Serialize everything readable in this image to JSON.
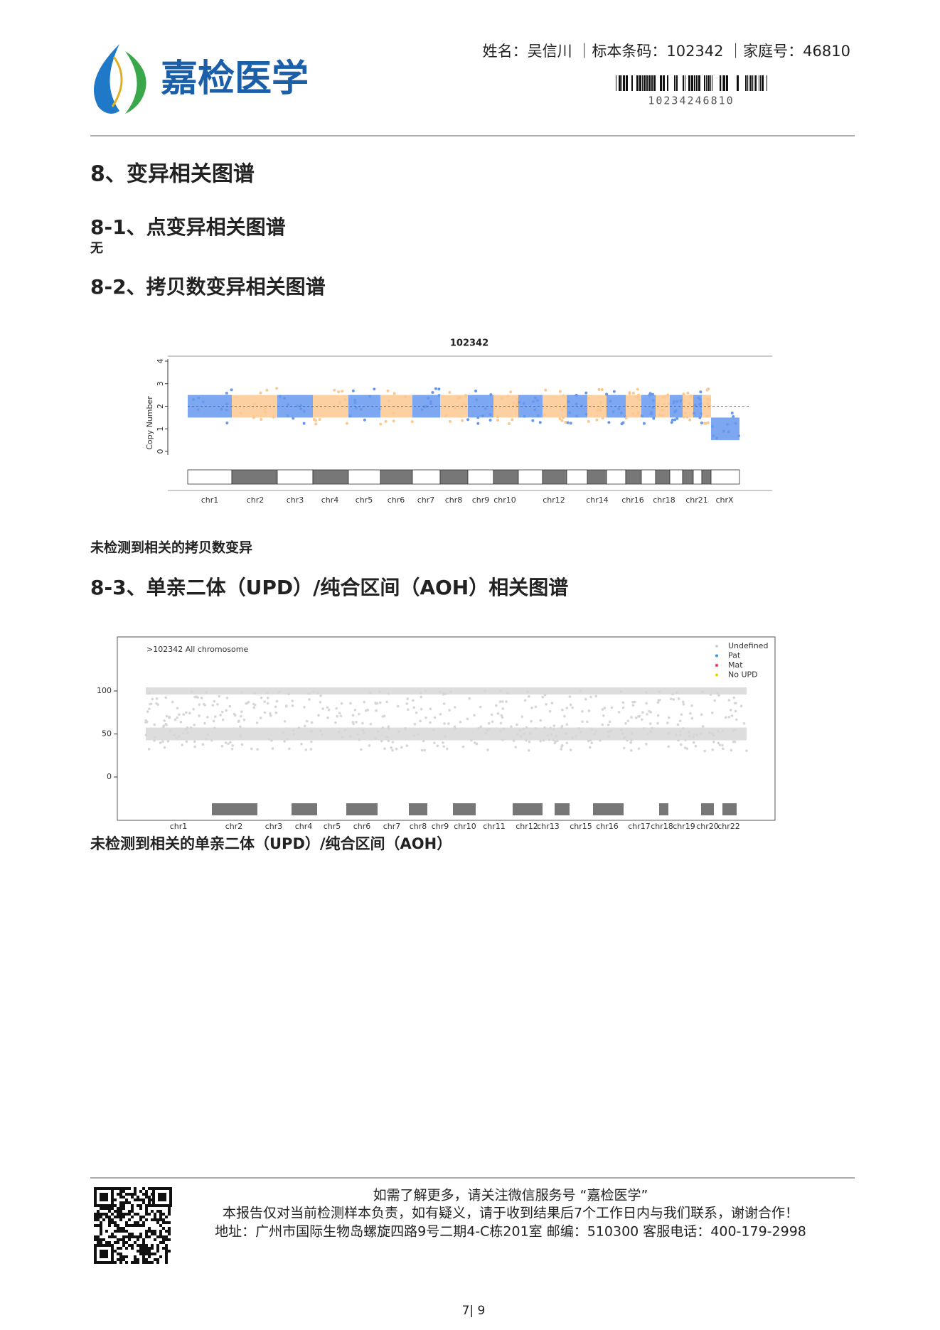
{
  "header": {
    "logo_text": "嘉检医学",
    "patient_info": "姓名：吴信川 ｜标本条码：102342 ｜家庭号：46810",
    "barcode_number": "10234246810"
  },
  "section": {
    "title": "8、变异相关图谱"
  },
  "subsections": [
    {
      "title": "8-1、点变异相关图谱",
      "note": "无"
    },
    {
      "title": "8-2、拷贝数变异相关图谱",
      "figure": {
        "title": "102342",
        "y_label": "Copy Number",
        "yticks": [
          0,
          1,
          2,
          3,
          4
        ],
        "chromosomes": [
          "chr1",
          "chr2",
          "chr3",
          "chr4",
          "chr5",
          "chr6",
          "chr7",
          "chr8",
          "chr9",
          "chr10",
          "chr12",
          "chr14",
          "chr16",
          "chr18",
          "chr21",
          "chrX"
        ],
        "colors": [
          "#6699ee",
          "#fcc890"
        ]
      },
      "conclusion": "未检测到相关的拷贝数变异"
    },
    {
      "title": "8-3、单亲二体（UPD）/纯合区间（AOH）相关图谱",
      "figure": {
        "title": ">102342  All chromosome",
        "yticks": [
          0,
          50,
          100
        ],
        "legend": [
          {
            "name": "Undefined",
            "color": "#d0d0d0"
          },
          {
            "name": "Pat",
            "color": "#3399ee"
          },
          {
            "name": "Mat",
            "color": "#ee3355"
          },
          {
            "name": "No UPD",
            "color": "#eecc00"
          }
        ],
        "chromosomes": [
          "chr1",
          "chr2",
          "chr3",
          "chr4",
          "chr5",
          "chr6",
          "chr7",
          "chr8",
          "chr9",
          "chr10",
          "chr11",
          "chr12",
          "chr13",
          "chr15",
          "chr16",
          "chr17",
          "chr18",
          "chr19",
          "chr20",
          "chr22"
        ]
      },
      "conclusion": "未检测到相关的单亲二体（UPD）/纯合区间（AOH）"
    }
  ],
  "footer": {
    "lines": [
      "如需了解更多，请关注微信服务号 “嘉检医学”",
      "本报告仅对当前检测样本负责，如有疑义，请于收到结果后7个工作日内与我们联系，谢谢合作！",
      "地址：广州市国际生物岛螺旋四路9号二期4-C栋201室    邮编：510300    客服电话：400-179-2998"
    ],
    "page": "7| 9"
  }
}
